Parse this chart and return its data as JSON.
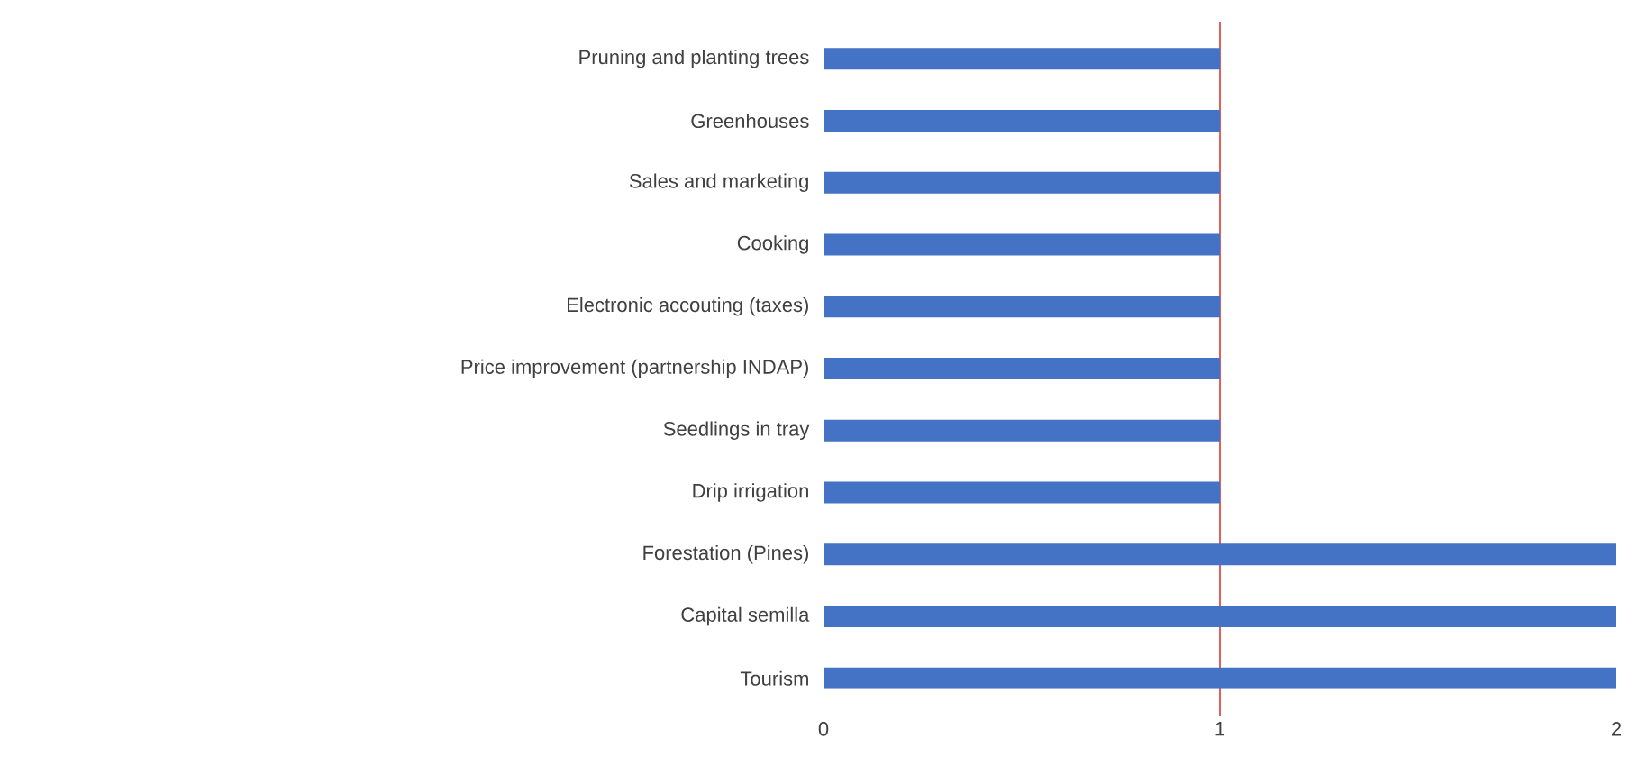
{
  "chart_data": {
    "type": "bar",
    "orientation": "horizontal",
    "categories": [
      "Pruning and planting trees",
      "Greenhouses",
      "Sales and marketing",
      "Cooking",
      "Electronic accouting (taxes)",
      "Price improvement (partnership INDAP)",
      "Seedlings in tray",
      "Drip irrigation",
      "Forestation (Pines)",
      "Capital semilla",
      "Tourism"
    ],
    "values": [
      1,
      1,
      1,
      1,
      1,
      1,
      1,
      1,
      2,
      2,
      2
    ],
    "color": "#4472c4",
    "xlim": [
      0,
      2
    ],
    "xticks": [
      0,
      1,
      2
    ],
    "ref_lines": [
      {
        "axis": "x",
        "value": 1,
        "color": "#e06060"
      }
    ]
  }
}
